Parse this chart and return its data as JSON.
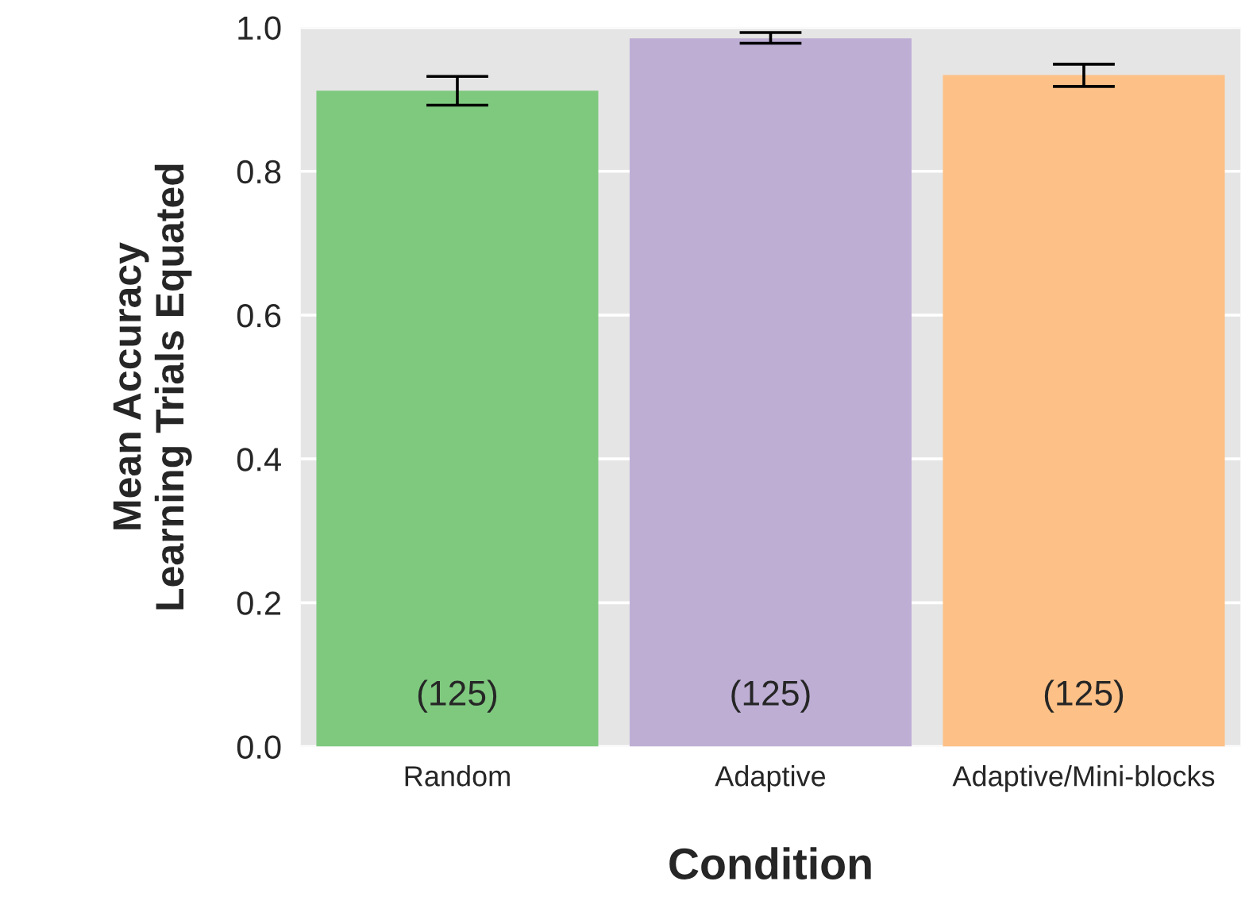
{
  "chart_data": {
    "type": "bar",
    "xlabel": "Condition",
    "ylabel": "Mean Accuracy\nLearning Trials Equated",
    "categories": [
      "Random",
      "Adaptive",
      "Adaptive/Mini-blocks"
    ],
    "values": [
      0.912,
      0.985,
      0.934
    ],
    "colors": [
      "#7fc97f",
      "#beaed4",
      "#fdc086"
    ],
    "errors": [
      [
        0.892,
        0.932
      ],
      [
        0.978,
        0.993
      ],
      [
        0.918,
        0.949
      ]
    ],
    "annotations": [
      "(125)",
      "(125)",
      "(125)"
    ],
    "ylim": [
      0,
      1.0
    ],
    "yticks": [
      {
        "value": 0,
        "label": "0.0"
      },
      {
        "value": 0.2,
        "label": "0.2"
      },
      {
        "value": 0.4,
        "label": "0.4"
      },
      {
        "value": 0.6,
        "label": "0.6"
      },
      {
        "value": 0.8,
        "label": "0.8"
      },
      {
        "value": 1.0,
        "label": "1.0"
      }
    ],
    "grid": "y"
  }
}
